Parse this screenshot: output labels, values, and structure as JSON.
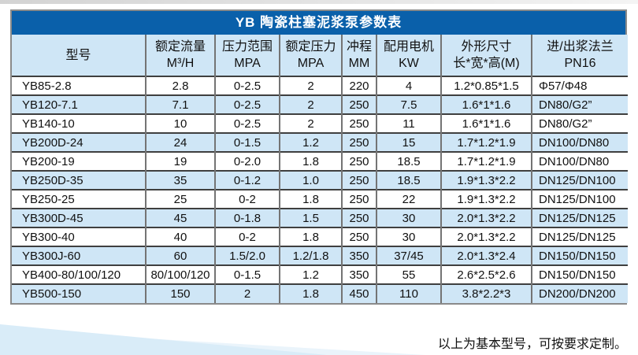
{
  "page": {
    "footer_note": "以上为基本型号，可按要求定制。"
  },
  "colors": {
    "title_bar_blue": "#0a60aa",
    "row_alt_blue": "#cfe6f6",
    "wedge_blue": "#d9ecf8"
  },
  "table": {
    "title": "YB 陶瓷柱塞泥浆泵参数表",
    "columns": [
      {
        "label": "型号",
        "sub": ""
      },
      {
        "label": "额定流量",
        "sub": "M³/H"
      },
      {
        "label": "压力范围",
        "sub": "MPA"
      },
      {
        "label": "额定压力",
        "sub": "MPA"
      },
      {
        "label": "冲程",
        "sub": "MM"
      },
      {
        "label": "配用电机",
        "sub": "KW"
      },
      {
        "label": "外形尺寸",
        "sub": "长*宽*高(M)"
      },
      {
        "label": "进/出浆法兰",
        "sub": "PN16"
      }
    ],
    "rows": [
      [
        "YB85-2.8",
        "2.8",
        "0-2.5",
        "2",
        "220",
        "4",
        "1.2*0.85*1.5",
        "Φ57/Φ48"
      ],
      [
        "YB120-7.1",
        "7.1",
        "0-2.5",
        "2",
        "250",
        "7.5",
        "1.6*1*1.6",
        "DN80/G2”"
      ],
      [
        "YB140-10",
        "10",
        "0-2.5",
        "2",
        "250",
        "11",
        "1.6*1*1.6",
        "DN80/G2”"
      ],
      [
        "YB200D-24",
        "24",
        "0-1.5",
        "1.2",
        "250",
        "15",
        "1.7*1.2*1.9",
        "DN100/DN80"
      ],
      [
        "YB200-19",
        "19",
        "0-2.0",
        "1.8",
        "250",
        "18.5",
        "1.7*1.2*1.9",
        "DN100/DN80"
      ],
      [
        "YB250D-35",
        "35",
        "0-1.2",
        "1.0",
        "250",
        "18.5",
        "1.9*1.3*2.2",
        "DN125/DN100"
      ],
      [
        "YB250-25",
        "25",
        "0-2",
        "1.8",
        "250",
        "22",
        "1.9*1.3*2.2",
        "DN125/DN100"
      ],
      [
        "YB300D-45",
        "45",
        "0-1.8",
        "1.5",
        "250",
        "30",
        "2.0*1.3*2.2",
        "DN125/DN125"
      ],
      [
        "YB300-40",
        "40",
        "0-2",
        "1.8",
        "250",
        "30",
        "2.0*1.3*2.2",
        "DN125/DN125"
      ],
      [
        "YB300J-60",
        "60",
        "1.5/2.0",
        "1.2/1.8",
        "350",
        "37/45",
        "2.0*1.3*2.4",
        "DN150/DN150"
      ],
      [
        "YB400-80/100/120",
        "80/100/120",
        "0-1.5",
        "1.2",
        "350",
        "55",
        "2.6*2.5*2.6",
        "DN150/DN150"
      ],
      [
        "YB500-150",
        "150",
        "2",
        "1.8",
        "450",
        "110",
        "3.8*2.2*3",
        "DN200/DN200"
      ]
    ]
  }
}
